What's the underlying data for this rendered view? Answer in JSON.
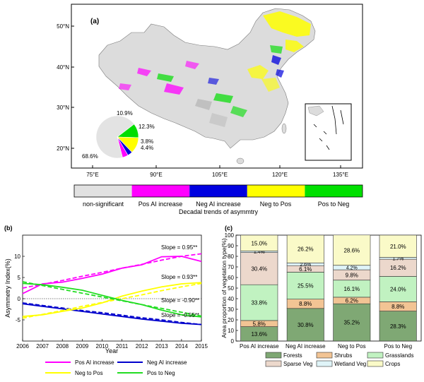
{
  "panel_a": {
    "label": "(a)",
    "lat_ticks": [
      "20°N",
      "30°N",
      "40°N",
      "50°N"
    ],
    "lon_ticks": [
      "75°E",
      "90°E",
      "105°E",
      "120°E",
      "135°E"
    ],
    "pie": {
      "labels": [
        "68.6%",
        "10.9%",
        "12.3%",
        "3.8%",
        "4.4%"
      ],
      "values": [
        68.6,
        10.9,
        12.3,
        3.8,
        4.4
      ],
      "colors": [
        "#e3e3e3",
        "#00dd00",
        "#ffff00",
        "#0000dd",
        "#ff00ff"
      ]
    },
    "colorbar": {
      "labels": [
        "non-significant",
        "Pos AI increase",
        "Neg AI increase",
        "Neg to Pos",
        "Pos to Neg"
      ],
      "colors": [
        "#e1e1e1",
        "#ff00ff",
        "#0000e0",
        "#ffff00",
        "#00e000"
      ],
      "title": "Decadal trends of asymmtry"
    }
  },
  "chart_data": [
    {
      "type": "line",
      "panel": "(b)",
      "xlabel": "Year",
      "ylabel": "Asymmetry Index(%)",
      "x": [
        2006,
        2007,
        2008,
        2009,
        2010,
        2011,
        2012,
        2013,
        2014,
        2015
      ],
      "xlim": [
        2006,
        2015
      ],
      "ylim": [
        -10,
        15
      ],
      "yticks": [
        -5,
        0,
        5,
        10
      ],
      "series": [
        {
          "name": "Pos AI increase",
          "color": "#ff00ff",
          "slope": "Slope = 0.95**",
          "values": [
            1.2,
            3.5,
            3.9,
            4.8,
            5.8,
            7.2,
            8.0,
            9.9,
            10.0,
            8.8
          ],
          "trend": [
            2.5,
            3.4,
            4.3,
            5.3,
            6.2,
            7.2,
            8.1,
            9.1,
            10.0,
            10.6
          ]
        },
        {
          "name": "Neg AI increase",
          "color": "#0000cc",
          "slope": "Slope = -0.55**",
          "values": [
            -1.2,
            -1.8,
            -2.4,
            -3.0,
            -3.6,
            -4.2,
            -4.8,
            -5.3,
            -5.8,
            -6.1
          ],
          "trend": [
            -1.0,
            -1.6,
            -2.2,
            -2.8,
            -3.3,
            -3.9,
            -4.5,
            -5.0,
            -5.6,
            -6.1
          ]
        },
        {
          "name": "Neg to Pos",
          "color": "#ffff00",
          "slope": "Slope = 0.93**",
          "values": [
            -4.2,
            -3.8,
            -3.0,
            -2.2,
            -1.0,
            0.6,
            1.8,
            2.8,
            3.5,
            3.8
          ],
          "trend": [
            -4.6,
            -3.7,
            -2.8,
            -1.8,
            -0.9,
            0.0,
            0.9,
            1.9,
            2.8,
            3.6
          ]
        },
        {
          "name": "Pos to Neg",
          "color": "#22dd22",
          "slope": "Slope = -0.90**",
          "values": [
            3.6,
            3.3,
            2.7,
            2.0,
            0.8,
            -0.4,
            -1.4,
            -2.7,
            -3.8,
            -4.3
          ],
          "trend": [
            4.0,
            3.1,
            2.2,
            1.3,
            0.4,
            -0.5,
            -1.4,
            -2.3,
            -3.2,
            -4.1
          ]
        }
      ]
    },
    {
      "type": "bar",
      "stacked": true,
      "panel": "(c)",
      "ylabel": "Area proportion of vegetation type(%)",
      "ylim": [
        0,
        100
      ],
      "yticks": [
        0,
        10,
        20,
        30,
        40,
        50,
        60,
        70,
        80,
        90,
        100
      ],
      "categories": [
        "Pos AI increase",
        "Neg AI increase",
        "Neg to Pos",
        "Pos to Neg"
      ],
      "series": [
        {
          "name": "Forests",
          "color": "#7fa874",
          "values": [
            13.6,
            30.8,
            35.2,
            28.3
          ],
          "labels": [
            "13.6%",
            "30.8%",
            "35.2%",
            "28.3%"
          ]
        },
        {
          "name": "Shrubs",
          "color": "#f2c494",
          "values": [
            5.8,
            8.8,
            6.2,
            8.8
          ],
          "labels": [
            "5.8%",
            "8.8%",
            "6.2%",
            "8.8%"
          ]
        },
        {
          "name": "Grasslands",
          "color": "#c1f2c1",
          "values": [
            33.8,
            25.5,
            16.1,
            24.0
          ],
          "labels": [
            "33.8%",
            "25.5%",
            "16.1%",
            "24.0%"
          ]
        },
        {
          "name": "Sparse Veg",
          "color": "#ecd8cc",
          "values": [
            30.4,
            6.1,
            9.8,
            16.2
          ],
          "labels": [
            "30.4%",
            "6.1%",
            "9.8%",
            "16.2%"
          ]
        },
        {
          "name": "Wetland Veg",
          "color": "#dff4f8",
          "values": [
            1.4,
            2.6,
            4.2,
            1.7
          ],
          "labels": [
            "1.4%",
            "2.6%",
            "4.2%",
            "1.7%"
          ]
        },
        {
          "name": "Crops",
          "color": "#fafac8",
          "values": [
            15.0,
            26.2,
            28.6,
            21.0
          ],
          "labels": [
            "15.0%",
            "26.2%",
            "28.6%",
            "21.0%"
          ]
        }
      ]
    }
  ]
}
